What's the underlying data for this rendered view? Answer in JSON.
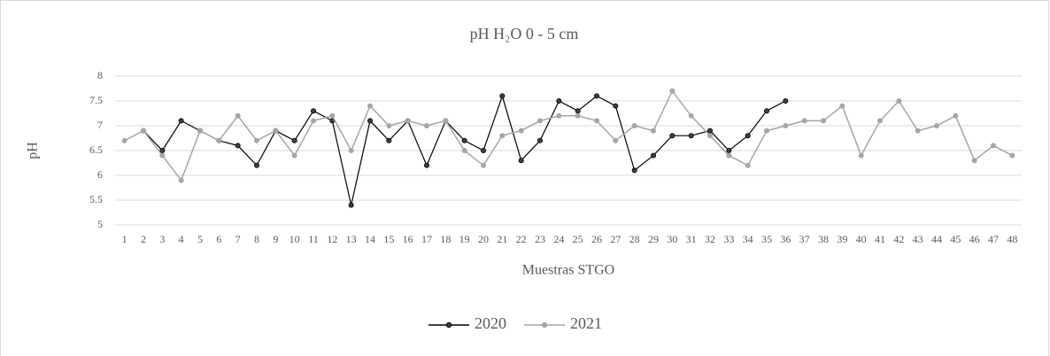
{
  "chart_data": {
    "type": "line",
    "title": "pH H₂O 0 - 5 cm",
    "x_label": "Muestras STGO",
    "y_label": "pH",
    "categories": [
      "1",
      "2",
      "3",
      "4",
      "5",
      "6",
      "7",
      "8",
      "9",
      "10",
      "11",
      "12",
      "13",
      "14",
      "15",
      "16",
      "17",
      "18",
      "19",
      "20",
      "21",
      "22",
      "23",
      "24",
      "25",
      "26",
      "27",
      "28",
      "29",
      "30",
      "31",
      "32",
      "33",
      "34",
      "35",
      "36",
      "37",
      "38",
      "39",
      "40",
      "41",
      "42",
      "43",
      "44",
      "45",
      "46",
      "47",
      "48"
    ],
    "series": [
      {
        "name": "2020",
        "color": "#000000",
        "values": [
          null,
          6.9,
          6.5,
          7.1,
          6.9,
          6.7,
          6.6,
          6.2,
          6.9,
          6.7,
          7.3,
          7.1,
          5.4,
          7.1,
          6.7,
          7.1,
          6.2,
          7.1,
          6.7,
          6.5,
          7.6,
          6.3,
          6.7,
          7.5,
          7.3,
          7.6,
          7.4,
          6.1,
          6.4,
          6.8,
          6.8,
          6.9,
          6.5,
          6.8,
          7.3,
          7.5,
          null,
          null,
          null,
          null,
          null,
          null,
          null,
          null,
          null,
          null,
          null,
          null
        ]
      },
      {
        "name": "2021",
        "color": "#a6a6a6",
        "values": [
          6.7,
          6.9,
          6.4,
          5.9,
          6.9,
          6.7,
          7.2,
          6.7,
          6.9,
          6.4,
          7.1,
          7.2,
          6.5,
          7.4,
          7.0,
          7.1,
          7.0,
          7.1,
          6.5,
          6.2,
          6.8,
          6.9,
          7.1,
          7.2,
          7.2,
          7.1,
          6.7,
          7.0,
          6.9,
          7.7,
          7.2,
          6.8,
          6.4,
          6.2,
          6.9,
          7.0,
          7.1,
          7.1,
          7.4,
          6.4,
          7.1,
          7.5,
          6.9,
          7.0,
          7.2,
          6.3,
          6.6,
          6.4
        ]
      }
    ],
    "ylim": [
      5,
      8
    ],
    "yticks": [
      5,
      5.5,
      6,
      6.5,
      7,
      7.5,
      8
    ],
    "grid": true,
    "legend": "bottom"
  }
}
